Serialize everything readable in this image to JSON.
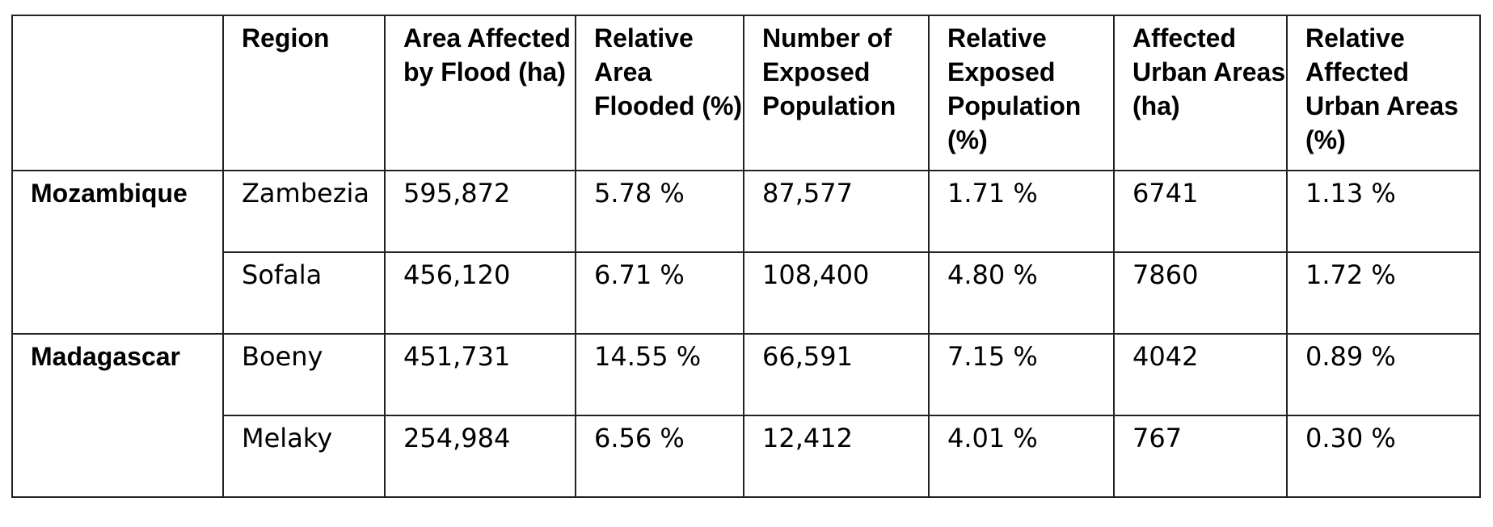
{
  "headers": [
    "",
    "Region",
    "Area Affected by Flood (ha)",
    "Relative Area Flooded (%)",
    "Number of Exposed Population",
    "Relative Exposed Population (%)",
    "Affected Urban Areas (ha)",
    "Relative Affected Urban Areas (%)"
  ],
  "countries": [
    "Mozambique",
    "Madagascar"
  ],
  "rows": [
    [
      "Zambezia",
      "595,872",
      "5.78 %",
      "87,577",
      "1.71 %",
      "6741",
      "1.13 %"
    ],
    [
      "Sofala",
      "456,120",
      "6.71 %",
      "108,400",
      "4.80 %",
      "7860",
      "1.72 %"
    ],
    [
      "Boeny",
      "451,731",
      "14.55 %",
      "66,591",
      "7.15 %",
      "4042",
      "0.89 %"
    ],
    [
      "Melaky",
      "254,984",
      "6.56 %",
      "12,412",
      "4.01 %",
      "767",
      "0.30 %"
    ]
  ]
}
